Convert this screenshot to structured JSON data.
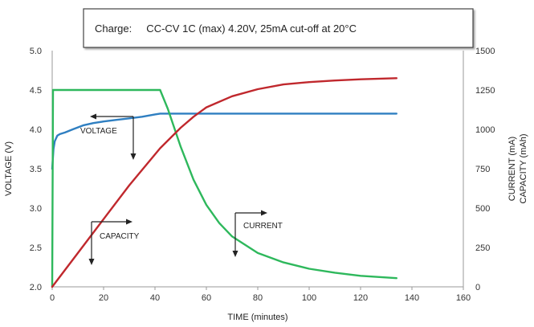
{
  "chart_data": {
    "type": "line",
    "title": "Charge:     CC-CV 1C (max) 4.20V, 25mA cut-off at 20°C",
    "xlabel": "TIME (minutes)",
    "ylabel_left": "VOLTAGE (V)",
    "ylabel_right": [
      "CURRENT (mA)",
      "CAPACITY (mAh)"
    ],
    "xlim": [
      0,
      160
    ],
    "ylim_left": [
      2.0,
      5.0
    ],
    "ylim_right": [
      0,
      1500
    ],
    "x_ticks": [
      "0",
      "20",
      "40",
      "60",
      "80",
      "100",
      "120",
      "140",
      "160"
    ],
    "y_left_ticks": [
      "2.0",
      "2.5",
      "3.0",
      "3.5",
      "4.0",
      "4.5",
      "5.0"
    ],
    "y_right_ticks": [
      "0",
      "250",
      "500",
      "750",
      "1000",
      "1250",
      "1500"
    ],
    "grid": false,
    "series": [
      {
        "name": "VOLTAGE",
        "axis": "left",
        "color": "#2f7fc1",
        "x": [
          0,
          0.5,
          1,
          2,
          3,
          5,
          8,
          12,
          16,
          20,
          25,
          30,
          35,
          40,
          42,
          44,
          50,
          60,
          80,
          100,
          120,
          134
        ],
        "y": [
          3.5,
          3.75,
          3.85,
          3.92,
          3.94,
          3.96,
          4.0,
          4.05,
          4.08,
          4.1,
          4.12,
          4.14,
          4.16,
          4.19,
          4.2,
          4.2,
          4.2,
          4.2,
          4.2,
          4.2,
          4.2,
          4.2
        ]
      },
      {
        "name": "CURRENT",
        "axis": "right",
        "color": "#2eb85c",
        "x": [
          0,
          0.3,
          10,
          20,
          30,
          42,
          45,
          50,
          55,
          60,
          65,
          70,
          80,
          90,
          100,
          110,
          120,
          134
        ],
        "y": [
          0,
          1250,
          1250,
          1250,
          1250,
          1250,
          1130,
          890,
          680,
          520,
          405,
          320,
          215,
          155,
          115,
          90,
          70,
          55
        ]
      },
      {
        "name": "CAPACITY",
        "axis": "right",
        "color": "#c0282d",
        "x": [
          0,
          10,
          20,
          30,
          42,
          50,
          55,
          60,
          70,
          80,
          90,
          100,
          110,
          120,
          134
        ],
        "y": [
          0,
          215,
          430,
          645,
          880,
          1010,
          1080,
          1140,
          1210,
          1255,
          1285,
          1300,
          1310,
          1318,
          1325
        ]
      }
    ],
    "annotations": [
      {
        "text": "VOLTAGE"
      },
      {
        "text": "CAPACITY"
      },
      {
        "text": "CURRENT"
      }
    ]
  }
}
